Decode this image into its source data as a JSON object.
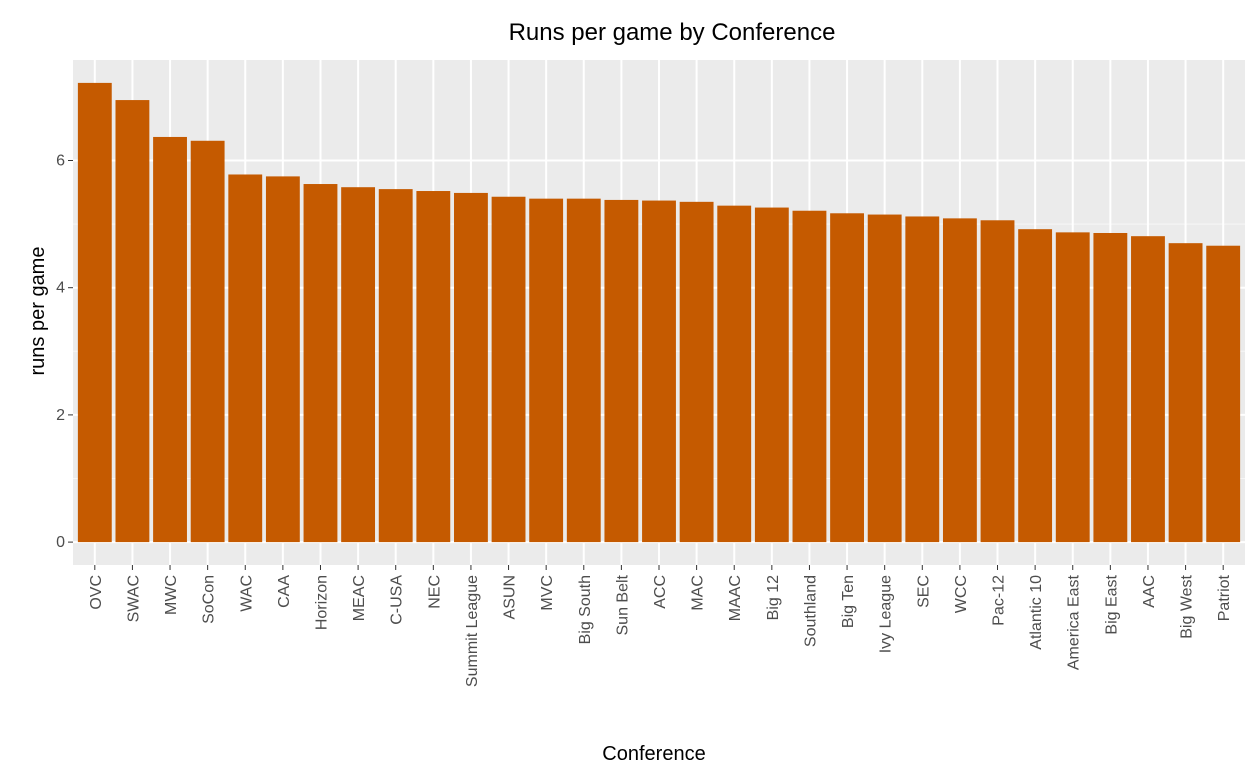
{
  "chart_data": {
    "type": "bar",
    "title": "Runs per game by Conference",
    "xlabel": "Conference",
    "ylabel": "runs per game",
    "categories": [
      "OVC",
      "SWAC",
      "MWC",
      "SoCon",
      "WAC",
      "CAA",
      "Horizon",
      "MEAC",
      "C-USA",
      "NEC",
      "Summit League",
      "ASUN",
      "MVC",
      "Big South",
      "Sun Belt",
      "ACC",
      "MAC",
      "MAAC",
      "Big 12",
      "Southland",
      "Big Ten",
      "Ivy League",
      "SEC",
      "WCC",
      "Pac-12",
      "Atlantic 10",
      "America East",
      "Big East",
      "AAC",
      "Big West",
      "Patriot"
    ],
    "values": [
      7.22,
      6.95,
      6.37,
      6.31,
      5.78,
      5.75,
      5.63,
      5.58,
      5.55,
      5.52,
      5.49,
      5.43,
      5.4,
      5.4,
      5.38,
      5.37,
      5.35,
      5.29,
      5.26,
      5.21,
      5.17,
      5.15,
      5.12,
      5.09,
      5.06,
      4.92,
      4.87,
      4.86,
      4.81,
      4.7,
      4.66
    ],
    "ylim": [
      -0.36,
      7.58
    ],
    "yticks": [
      0,
      2,
      4,
      6
    ],
    "grid": true,
    "legend": "none",
    "colors": {
      "bar": "#c55a00",
      "panel": "#ebebeb",
      "grid_major": "#ffffff",
      "tick_text": "#4d4d4d"
    }
  }
}
